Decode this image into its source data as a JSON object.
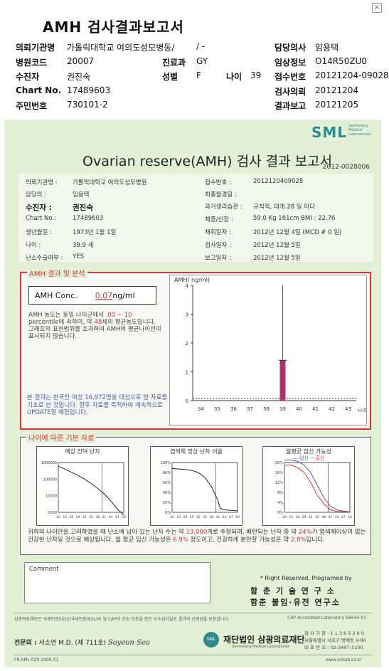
{
  "top_header": {
    "title": "AMH 검사결과보고서",
    "rows": [
      {
        "l1": "의뢰기관명",
        "v1": "가톨릭대학교 여의도성모병동/",
        "l2": "",
        "v2": "/ -",
        "l3": "담당의사",
        "v3": "임용택"
      },
      {
        "l1": "병원코드",
        "v1": "20007",
        "l2": "진료과",
        "v2": "GY",
        "l3": "임상정보",
        "v3": "O14R50ZU0"
      },
      {
        "l1": "수진자",
        "v1": "권진숙",
        "l2": "성별",
        "v2": "F",
        "l3": "접수번호",
        "v3": "20121204-09028"
      },
      {
        "l1": "Chart No.",
        "v1": "17489603",
        "l2": "",
        "v2": "",
        "l3": "검사의뢰",
        "v3": "20121204"
      },
      {
        "l1": "주민번호",
        "v1": "730101-2",
        "l2": "",
        "v2": "",
        "l3": "결과보고",
        "v3": "20121205"
      }
    ],
    "age_label": "나이",
    "age_value": "39"
  },
  "report": {
    "logo": "SML",
    "logo_sub": "Samkwang Medical Laboratories",
    "title": "Ovarian reserve(AMH) 검사 결과 보고서",
    "report_no": "2012-0028006",
    "info_left": [
      {
        "label": "의뢰기관명 :",
        "value": "가톨릭대학교 여의도성모병원"
      },
      {
        "label": "담당의 :",
        "value": "임용택"
      },
      {
        "label": "수진자 :",
        "value": "권진숙"
      },
      {
        "label": "Chart No.:",
        "value": "17489603"
      },
      {
        "label": "생년월일 :",
        "value": "1973년 1월 1일"
      },
      {
        "label": "나이 :",
        "value": "39.9 세"
      },
      {
        "label": "난소수술여부 :",
        "value": "YES"
      }
    ],
    "info_right": [
      {
        "label": "접수번호 :",
        "value": "201212040​9028"
      },
      {
        "label": "최종월경일 :",
        "value": ""
      },
      {
        "label": "과거생리습관 :",
        "value": "규칙적, 대개   28 일 마다"
      },
      {
        "label": "체중/신장 :",
        "value": "59.0 Kg    161cm    BMI : 22.76"
      },
      {
        "label": "채취일자 :",
        "value": "2012년 12월 4일   (MCD # 0 일)"
      },
      {
        "label": "검사일자 :",
        "value": "2012년 12월 5일"
      },
      {
        "label": "보고일자 :",
        "value": "2012년 12월 5일"
      }
    ],
    "amh_section_title": "AMH 결과 및 분석",
    "amh_conc_label": "AMH Conc.",
    "amh_conc_value": "0.07",
    "amh_conc_unit": "ng/ml",
    "amh_text_1": "AMH 농도는 동일 나이군에서",
    "amh_text_range": ".00 ~ 10",
    "amh_text_2": "percentile에 속하며, 약",
    "amh_text_age": "48",
    "amh_text_3": "세의 평균농도입니다.",
    "amh_text_4": "그래프의 표현범위를 초과하여 AMH의 평균나이선이 표시되지 않습니다.",
    "amh_note": "본 결과는 한국인 여성 16,972명을 대상으로 한 자료를 기초로 한 것입니다. 향후 자료를 축적하여 계속적으로 UPDATE할 예정입니다.",
    "age_section_title": "나이에 따른 기본 자료",
    "mini1_title": "예상 잔여 난자",
    "mini2_title": "염색체 정상 난자 비율",
    "mini3_title": "월평균 임신 가능성",
    "mini3_legend_a": "임신",
    "mini3_legend_b": "출산",
    "age_text_1": "귀하의 나이만을 고려하였을 때 난소에 남아 있는 난자 수는 약",
    "age_eggs": "13,000",
    "age_text_2": "개로 추정되며, 배란되는 난자 중 약",
    "age_pct1": "24%",
    "age_text_3": "가 염색체이상이 없는 건강한 난자일 것으로 예상됩니다. 월 평균 임신 가능성은",
    "age_pct2": "6.9%",
    "age_text_4": "정도이고, 건강하게 분만할 가능성은 약",
    "age_pct3": "2.8%",
    "age_text_5": "입니다.",
    "comment_label": "Comment",
    "rights": "* Right Reserved, Programed by",
    "inst1": "함 춘 기 술 연 구 소",
    "inst2": "함춘 불임·유전 연구소",
    "foot_left": "삼광의료재단은 국제인증(ISO)/국내인증(KSLM) 및 CAP의 신임 인증을 받은 우수검사실로 결과의 신뢰성을 보장합니다.",
    "foot_right": "CAP Accredited Laboratory  69644-01",
    "doctor_label": "전문의 :",
    "doctor_name": "서소연 M.D. (제 711호)",
    "doctor_sig": "Soyeon Seo",
    "foundation_mark": "SML",
    "foundation_name": "재단법인 삼광의료재단",
    "foundation_sub": "Samkwang Medical Laboratories",
    "contact1": "검 사 기 관 : 1 1 3 6 5 2 0 0",
    "contact2": "서울특별시 서초구 방배동 9-80",
    "contact3": "대 표 번 호 : 02-3497-5100",
    "form_code": "FR-SML-020  2006.01",
    "website": "www.smlab.co.kr"
  },
  "chart_data": [
    {
      "type": "bar",
      "title": "AMH( ng/ml)",
      "xlabel": "나이",
      "categories": [
        "34",
        "35",
        "36",
        "37",
        "38",
        "39",
        "40",
        "41",
        "42",
        "43"
      ],
      "ylim": [
        0,
        4
      ],
      "yticks": [
        0,
        1,
        2,
        3,
        4
      ],
      "patient_age": "39",
      "patient_value": 0.07,
      "bar_range": [
        0,
        1.4
      ],
      "whisker_top": 4
    },
    {
      "type": "line",
      "title": "예상 잔여 난자",
      "log_scale": true,
      "yticks": [
        "1000000",
        "100000",
        "10000",
        "1000"
      ],
      "xticks": [
        "20",
        "23",
        "26",
        "29",
        "32",
        "35",
        "38",
        "41",
        "44",
        "47",
        "50"
      ],
      "x": [
        20,
        23,
        26,
        29,
        32,
        35,
        38,
        41,
        44,
        47,
        50
      ],
      "y": [
        600000,
        400000,
        260000,
        170000,
        100000,
        55000,
        28000,
        13000,
        5000,
        1600,
        700
      ],
      "marker_age": 40
    },
    {
      "type": "line",
      "title": "염색체 정상 난자 비율",
      "yticks": [
        "100%",
        "80%",
        "60%",
        "40%",
        "20%",
        "0%"
      ],
      "xticks": [
        "20",
        "23",
        "26",
        "29",
        "32",
        "35",
        "38",
        "41",
        "44",
        "47",
        "50"
      ],
      "x": [
        20,
        23,
        26,
        29,
        32,
        35,
        38,
        41,
        42,
        44,
        47,
        50
      ],
      "y": [
        88,
        87,
        86,
        84,
        80,
        70,
        52,
        24,
        8,
        5,
        4,
        3
      ],
      "marker_age": 40
    },
    {
      "type": "line",
      "title": "월평균 임신 가능성",
      "yticks": [
        "20%",
        "16%",
        "12%",
        "8%",
        "4%",
        "0%"
      ],
      "xticks": [
        "20",
        "23",
        "26",
        "29",
        "32",
        "35",
        "38",
        "41",
        "44",
        "47",
        "50"
      ],
      "series": [
        {
          "name": "임신",
          "x": [
            20,
            23,
            26,
            29,
            32,
            35,
            38,
            41,
            44,
            47,
            50
          ],
          "y": [
            21,
            21,
            20.5,
            19,
            16,
            11,
            6,
            2.5,
            1,
            0.5,
            0.2
          ]
        },
        {
          "name": "출산",
          "x": [
            20,
            23,
            26,
            29,
            32,
            35,
            38,
            41,
            44,
            47,
            50
          ],
          "y": [
            19,
            19,
            18,
            16,
            12,
            7,
            3.5,
            1,
            0.4,
            0.2,
            0.1
          ]
        }
      ],
      "colors": {
        "임신": "#4a5ab0",
        "출산": "#d33"
      },
      "marker_age": 40
    }
  ]
}
